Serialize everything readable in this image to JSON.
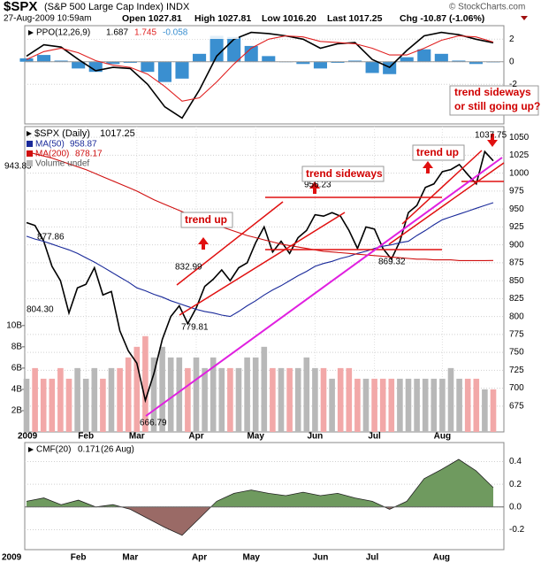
{
  "header": {
    "symbol": "$SPX",
    "name": "(S&P 500 Large Cap Index) INDX",
    "datetime": "27-Aug-2009 10:59am",
    "quote": [
      "Open 1027.81",
      "High 1027.81",
      "Low 1016.20",
      "Last 1017.25",
      "Chg -10.87 (-1.06%)"
    ],
    "credit": "© StockCharts.com"
  },
  "chart_data": [
    {
      "type": "line",
      "title": "PPO(12,26,9)",
      "series": [
        {
          "color": "#000000",
          "values": [
            0.5,
            1.5,
            1.3,
            0.2,
            -0.8,
            -0.5,
            -0.6,
            -2.0,
            -4.0,
            -5.0,
            -2.5,
            0.5,
            2.0,
            2.6,
            2.5,
            2.3,
            2.0,
            1.2,
            1.6,
            1.7,
            0.2,
            -0.5,
            1.0,
            2.3,
            2.6,
            2.4,
            2.0,
            1.687
          ]
        },
        {
          "color": "#e02020",
          "values": [
            0.2,
            0.9,
            1.2,
            0.8,
            0.1,
            -0.3,
            -0.5,
            -1.1,
            -2.2,
            -3.5,
            -3.2,
            -1.8,
            -0.2,
            1.2,
            2.0,
            2.3,
            2.2,
            1.8,
            1.7,
            1.6,
            1.2,
            0.6,
            0.6,
            1.2,
            1.9,
            2.3,
            2.2,
            1.745
          ]
        },
        {
          "type": "bar",
          "color": "#3a8fd0",
          "values": [
            0.3,
            0.6,
            0.1,
            -0.6,
            -0.9,
            -0.2,
            -0.1,
            -0.9,
            -1.8,
            -1.5,
            0.7,
            2.3,
            2.2,
            1.4,
            0.5,
            0,
            -0.2,
            -0.6,
            -0.1,
            0.1,
            -1.0,
            -1.1,
            0.4,
            1.1,
            0.7,
            0.1,
            -0.2,
            -0.058
          ]
        }
      ],
      "ylim": [
        -5.52,
        3.2
      ],
      "yticks": [
        2,
        0,
        -2
      ],
      "grid": true
    },
    {
      "type": "line",
      "categories": [
        "2009",
        null,
        null,
        null,
        null,
        null,
        null,
        "Feb",
        null,
        null,
        null,
        null,
        null,
        "Mar",
        null,
        null,
        null,
        null,
        null,
        null,
        "Apr",
        null,
        null,
        null,
        null,
        null,
        null,
        "May",
        null,
        null,
        null,
        null,
        null,
        null,
        "Jun",
        null,
        null,
        null,
        null,
        null,
        null,
        "Jul",
        null,
        null,
        null,
        null,
        null,
        null,
        null,
        "Aug",
        null,
        null,
        null,
        null,
        null,
        null
      ],
      "series": [
        {
          "name": "$SPX (Daily)",
          "color": "#000000",
          "values": [
            931,
            927,
            906,
            870,
            850,
            805,
            840,
            845,
            868,
            830,
            835,
            780,
            752,
            735,
            683,
            720,
            768,
            800,
            815,
            790,
            812,
            842,
            852,
            865,
            850,
            868,
            875,
            903,
            925,
            890,
            905,
            888,
            910,
            920,
            942,
            940,
            945,
            940,
            920,
            895,
            925,
            922,
            895,
            880,
            905,
            945,
            955,
            980,
            985,
            1002,
            1005,
            1012,
            998,
            985,
            1030,
            1017.25
          ]
        },
        {
          "name": "MA(50)",
          "color": "#1a2a9a",
          "values": [
            912,
            908,
            905,
            901,
            897,
            893,
            888,
            882,
            876,
            869,
            862,
            855,
            848,
            840,
            836,
            831,
            827,
            822,
            818,
            814,
            810,
            807,
            805,
            802,
            800,
            807,
            815,
            822,
            830,
            837,
            843,
            850,
            857,
            863,
            870,
            874,
            877,
            881,
            884,
            888,
            891,
            895,
            898,
            900,
            903,
            905,
            913,
            920,
            928,
            935,
            939,
            943,
            947,
            951,
            955,
            958.87
          ]
        },
        {
          "name": "MA(200)",
          "color": "#d01010",
          "values": [
            1030,
            1027,
            1024,
            1021,
            1017,
            1013,
            1009,
            1005,
            1000,
            995,
            990,
            985,
            980,
            975,
            969,
            963,
            958,
            953,
            948,
            943,
            938,
            933,
            929,
            925,
            921,
            917,
            913,
            910,
            907,
            904,
            901,
            899,
            897,
            895,
            893,
            891,
            890,
            889,
            888,
            887,
            886,
            885,
            884,
            883,
            882,
            881,
            880,
            880,
            879,
            879,
            879,
            878,
            878,
            878,
            878,
            878.17
          ]
        },
        {
          "name": "Volume undef",
          "type": "bar",
          "axis": "y2",
          "color": "#b8b8b8",
          "down_color": "#f2a8a8",
          "values": [
            5,
            6,
            5,
            5,
            6,
            5,
            6,
            5,
            6,
            5,
            6,
            6,
            7,
            8,
            9,
            7,
            8,
            7,
            7,
            6,
            7,
            6,
            7,
            6,
            6,
            6,
            7,
            7,
            8,
            6,
            6,
            6,
            6,
            7,
            6,
            6,
            5,
            6,
            6,
            5,
            5,
            5,
            5,
            5,
            5,
            5,
            5,
            5,
            5,
            5,
            6,
            5,
            5,
            5,
            4,
            4
          ]
        }
      ],
      "ylim": [
        639,
        1065
      ],
      "yticks": [
        1050,
        1025,
        1000,
        975,
        950,
        925,
        900,
        875,
        850,
        825,
        800,
        775,
        750,
        725,
        700,
        675
      ],
      "y2lim": [
        0,
        28.7
      ],
      "y2ticks": [
        {
          "value": 10,
          "label": "10B"
        },
        {
          "value": 8,
          "label": "8B"
        },
        {
          "value": 6,
          "label": "6B"
        },
        {
          "value": 4,
          "label": "4B"
        },
        {
          "value": 2,
          "label": "2B"
        }
      ],
      "grid": true,
      "annotations": [
        "943.85",
        "877.86",
        "804.30",
        "832.99",
        "779.81",
        "666.79",
        "956.23",
        "869.32",
        "1037.75",
        "trend up",
        "trend sideways",
        "trend up",
        "trend sideways",
        "or still going up?"
      ]
    },
    {
      "type": "area",
      "title": "CMF(20)",
      "date_label": "(26 Aug)",
      "categories": [
        "2009",
        null,
        null,
        "Feb",
        null,
        null,
        "Mar",
        null,
        null,
        null,
        "Apr",
        null,
        null,
        "May",
        null,
        null,
        null,
        "Jun",
        null,
        null,
        "Jul",
        null,
        null,
        null,
        "Aug",
        null,
        null,
        null
      ],
      "values": [
        0.05,
        0.08,
        0.02,
        0.06,
        0.0,
        0.02,
        -0.02,
        -0.1,
        -0.18,
        -0.25,
        -0.1,
        0.05,
        0.12,
        0.15,
        0.12,
        0.1,
        0.13,
        0.1,
        0.12,
        0.08,
        0.05,
        -0.02,
        0.05,
        0.25,
        0.33,
        0.42,
        0.32,
        0.171
      ],
      "color": "#6f9a5f",
      "negative_color": "#9a6a66",
      "ylim": [
        -0.376,
        0.568
      ],
      "yticks": [
        0.4,
        0.2,
        {
          "value": 0,
          "label": "0.0"
        },
        -0.2
      ],
      "grid": true
    }
  ]
}
